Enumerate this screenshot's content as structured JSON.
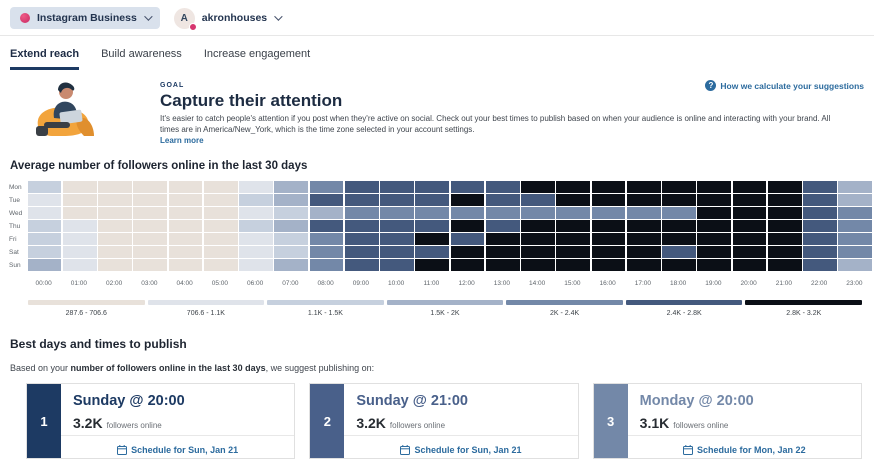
{
  "header": {
    "network_selector": {
      "label": "Instagram Business"
    },
    "profile_selector": {
      "name": "akronhouses",
      "avatar_initial": "A"
    }
  },
  "tabs": [
    {
      "label": "Extend reach",
      "active": true
    },
    {
      "label": "Build awareness",
      "active": false
    },
    {
      "label": "Increase engagement",
      "active": false
    }
  ],
  "goal": {
    "eyebrow": "GOAL",
    "title": "Capture their attention",
    "description": "It's easier to catch people's attention if you post when they're active on social. Check out your best times to publish based on when your audience is online and interacting with your brand. All times are in America/New_York, which is the time zone selected in your account settings.",
    "learn_more": "Learn more",
    "help_link": "How we calculate your suggestions",
    "question_icon": "?"
  },
  "chart_data": {
    "type": "heatmap",
    "title": "Average number of followers online in the last 30 days",
    "rows": [
      "Mon",
      "Tue",
      "Wed",
      "Thu",
      "Fri",
      "Sat",
      "Sun"
    ],
    "columns": [
      "00:00",
      "01:00",
      "02:00",
      "03:00",
      "04:00",
      "05:00",
      "06:00",
      "07:00",
      "08:00",
      "09:00",
      "10:00",
      "11:00",
      "12:00",
      "13:00",
      "14:00",
      "15:00",
      "16:00",
      "17:00",
      "18:00",
      "19:00",
      "20:00",
      "21:00",
      "22:00",
      "23:00"
    ],
    "buckets": [
      {
        "label": "287.6 - 706.6",
        "color": "#e8e1da"
      },
      {
        "label": "706.6 - 1.1K",
        "color": "#dfe3ea"
      },
      {
        "label": "1.1K - 1.5K",
        "color": "#c6d0de"
      },
      {
        "label": "1.5K - 2K",
        "color": "#a4b2c8"
      },
      {
        "label": "2K - 2.4K",
        "color": "#7388a8"
      },
      {
        "label": "2.4K - 2.8K",
        "color": "#44597d"
      },
      {
        "label": "2.8K - 3.2K",
        "color": "#0b0f16"
      }
    ],
    "values_bucket_index": [
      [
        3,
        1,
        1,
        1,
        1,
        1,
        2,
        4,
        5,
        6,
        6,
        6,
        6,
        6,
        7,
        7,
        7,
        7,
        7,
        7,
        7,
        7,
        6,
        4
      ],
      [
        2,
        1,
        1,
        1,
        1,
        1,
        3,
        4,
        6,
        6,
        6,
        6,
        7,
        6,
        6,
        7,
        7,
        7,
        7,
        7,
        7,
        7,
        6,
        4
      ],
      [
        2,
        1,
        1,
        1,
        1,
        1,
        2,
        3,
        4,
        5,
        5,
        5,
        5,
        5,
        5,
        5,
        5,
        5,
        5,
        7,
        7,
        7,
        6,
        5
      ],
      [
        3,
        2,
        1,
        1,
        1,
        1,
        3,
        4,
        6,
        6,
        6,
        6,
        7,
        6,
        7,
        7,
        7,
        7,
        7,
        7,
        7,
        7,
        6,
        5
      ],
      [
        3,
        2,
        1,
        1,
        1,
        1,
        2,
        3,
        5,
        6,
        6,
        7,
        6,
        7,
        7,
        7,
        7,
        7,
        7,
        7,
        7,
        7,
        6,
        5
      ],
      [
        3,
        2,
        1,
        1,
        1,
        1,
        2,
        3,
        5,
        6,
        6,
        6,
        7,
        7,
        7,
        7,
        7,
        7,
        6,
        7,
        7,
        7,
        6,
        5
      ],
      [
        4,
        2,
        1,
        1,
        1,
        1,
        2,
        4,
        5,
        6,
        6,
        7,
        7,
        7,
        7,
        7,
        7,
        7,
        7,
        7,
        7,
        7,
        6,
        4
      ]
    ],
    "legend_position": "bottom",
    "timezone_note": "America/New_York"
  },
  "best": {
    "title": "Best days and times to publish",
    "intro_prefix": "Based on your ",
    "intro_bold": "number of followers online in the last 30 days",
    "intro_suffix": ", we suggest publishing on:",
    "cards": [
      {
        "rank": "1",
        "rank_color": "#1d3a63",
        "title": "Sunday @ 20:00",
        "title_color": "#1d3a63",
        "count": "3.2K",
        "unit": "followers online",
        "schedule_label": "Schedule for Sun, Jan 21"
      },
      {
        "rank": "2",
        "rank_color": "#49608a",
        "title": "Sunday @ 21:00",
        "title_color": "#49608a",
        "count": "3.2K",
        "unit": "followers online",
        "schedule_label": "Schedule for Sun, Jan 21"
      },
      {
        "rank": "3",
        "rank_color": "#7388a8",
        "title": "Monday @ 20:00",
        "title_color": "#7388a8",
        "count": "3.1K",
        "unit": "followers online",
        "schedule_label": "Schedule for Mon, Jan 22"
      }
    ]
  },
  "colors": {
    "link_blue": "#2c6b9e",
    "navy": "#1d3a63",
    "instagram_pink": "#d6356e",
    "pill_background": "#d9e1ec"
  }
}
